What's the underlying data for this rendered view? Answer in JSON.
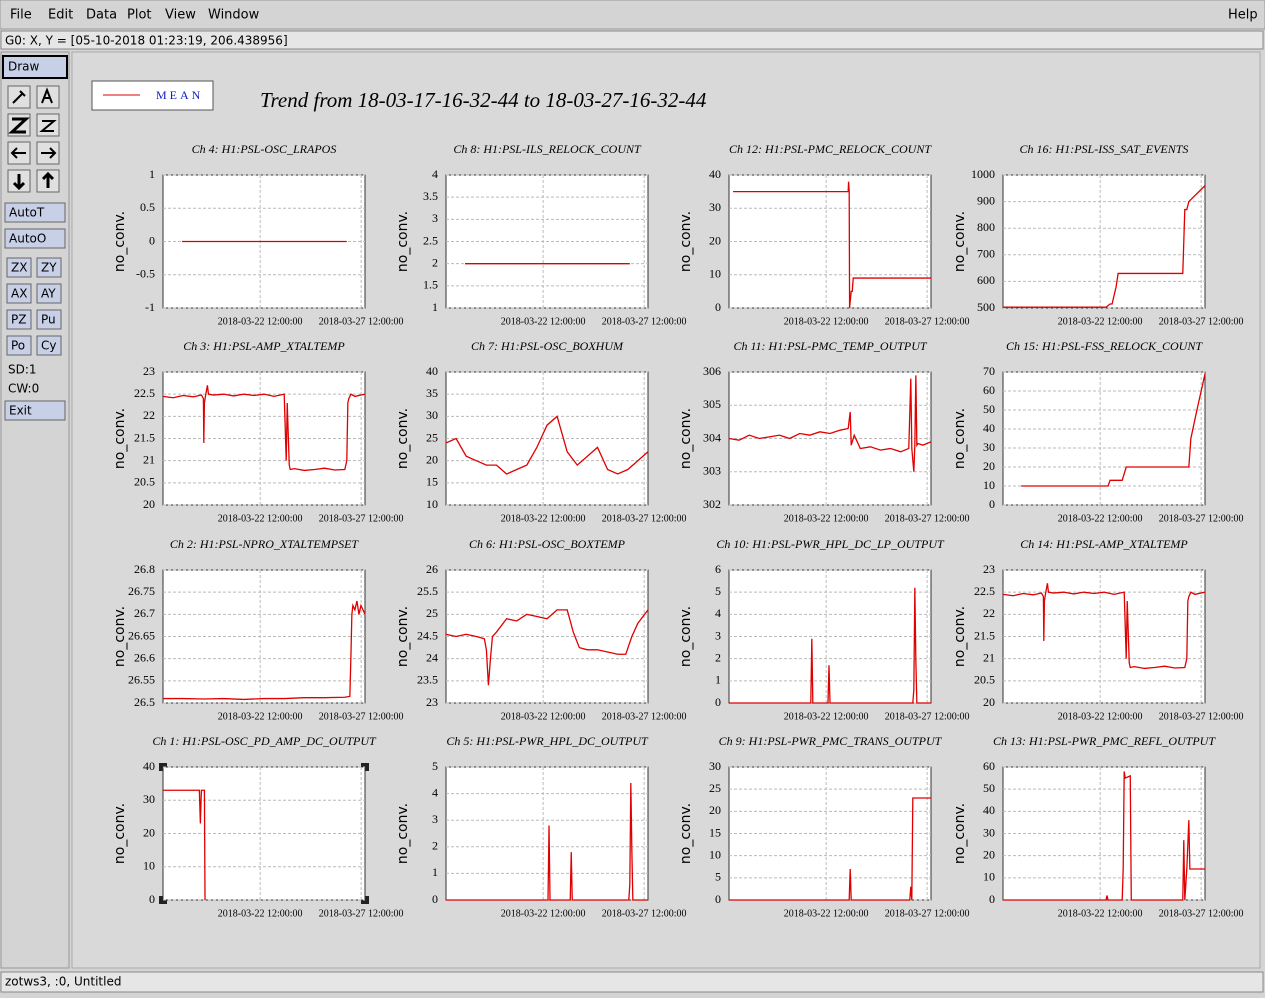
{
  "menu": [
    "File",
    "Edit",
    "Data",
    "Plot",
    "View",
    "Window"
  ],
  "help": "Help",
  "status": "G0: X, Y = [05-10-2018 01:23:19, 206.438956]",
  "toolbar": {
    "draw": "Draw",
    "buttons": [
      "AutoT",
      "AutoO"
    ],
    "pairs": [
      [
        "ZX",
        "ZY"
      ],
      [
        "AX",
        "AY"
      ],
      [
        "PZ",
        "Pu"
      ],
      [
        "Po",
        "Cy"
      ]
    ],
    "info": [
      "SD:1",
      "CW:0"
    ],
    "exit": "Exit"
  },
  "footer": "zotws3, :0, Untitled",
  "title": "Trend from 18-03-17-16-32-44 to 18-03-27-16-32-44",
  "legend": "MEAN",
  "chart_data": [
    {
      "type": "line",
      "title": "Ch 4: H1:PSL-OSC_LRAPOS",
      "ylabel": "no_conv.",
      "color": "#e00000",
      "grid": true,
      "x": [
        0.94,
        9.1
      ],
      "values": [
        0,
        0
      ],
      "xlim": [
        0,
        10
      ],
      "ylim": [
        -1,
        1
      ],
      "yticks": [
        -1,
        -0.5,
        0,
        0.5,
        1
      ],
      "xticks": [
        {
          "value": 4.81,
          "label": "2018-03-22 12:00:00"
        },
        {
          "value": 9.81,
          "label": "2018-03-27 12:00:00"
        }
      ]
    },
    {
      "type": "line",
      "title": "Ch 8: H1:PSL-ILS_RELOCK_COUNT",
      "ylabel": "no_conv.",
      "color": "#e00000",
      "grid": true,
      "x": [
        0.94,
        9.1
      ],
      "values": [
        2,
        2
      ],
      "xlim": [
        0,
        10
      ],
      "ylim": [
        1,
        4
      ],
      "yticks": [
        1,
        1.5,
        2,
        2.5,
        3,
        3.5,
        4
      ],
      "xticks": [
        {
          "value": 4.81,
          "label": "2018-03-22 12:00:00"
        },
        {
          "value": 9.81,
          "label": "2018-03-27 12:00:00"
        }
      ]
    },
    {
      "type": "line",
      "title": "Ch 12: H1:PSL-PMC_RELOCK_COUNT",
      "ylabel": "no_conv.",
      "color": "#e00000",
      "grid": true,
      "x": [
        0.2,
        5.9,
        5.92,
        5.95,
        5.97,
        6.0,
        6.05,
        6.1,
        6.15,
        6.2,
        10
      ],
      "values": [
        35,
        35,
        38,
        35,
        0,
        2,
        5,
        5,
        9,
        9,
        9
      ],
      "xlim": [
        0,
        10
      ],
      "ylim": [
        0,
        40
      ],
      "yticks": [
        0,
        10,
        20,
        30,
        40
      ],
      "xticks": [
        {
          "value": 4.81,
          "label": "2018-03-22 12:00:00"
        },
        {
          "value": 9.81,
          "label": "2018-03-27 12:00:00"
        }
      ]
    },
    {
      "type": "line",
      "title": "Ch 16: H1:PSL-ISS_SAT_EVENTS",
      "ylabel": "no_conv.",
      "color": "#e00000",
      "grid": true,
      "x": [
        0,
        5.1,
        5.3,
        5.4,
        5.6,
        5.7,
        8.9,
        9.0,
        9.1,
        9.2,
        10
      ],
      "values": [
        503,
        503,
        515,
        515,
        580,
        630,
        630,
        870,
        870,
        900,
        960
      ],
      "xlim": [
        0,
        10
      ],
      "ylim": [
        500,
        1000
      ],
      "yticks": [
        500,
        600,
        700,
        800,
        900,
        1000
      ],
      "xticks": [
        {
          "value": 4.81,
          "label": "2018-03-22 12:00:00"
        },
        {
          "value": 9.81,
          "label": "2018-03-27 12:00:00"
        }
      ]
    },
    {
      "type": "line",
      "title": "Ch 3: H1:PSL-AMP_XTALTEMP",
      "ylabel": "no_conv.",
      "color": "#e00000",
      "grid": true,
      "x": [
        0,
        0.5,
        1,
        1.5,
        1.9,
        2.0,
        2.02,
        2.05,
        2.1,
        2.2,
        2.25,
        2.5,
        3,
        3.5,
        4,
        4.5,
        5,
        5.5,
        6.0,
        6.1,
        6.15,
        6.25,
        6.3,
        6.5,
        7,
        7.5,
        8,
        8.5,
        9.0,
        9.1,
        9.15,
        9.2,
        9.3,
        9.5,
        10
      ],
      "values": [
        22.45,
        22.42,
        22.47,
        22.44,
        22.48,
        22.4,
        21.4,
        22.3,
        22.45,
        22.7,
        22.5,
        22.48,
        22.5,
        22.46,
        22.5,
        22.47,
        22.5,
        22.45,
        22.5,
        21.0,
        22.3,
        20.9,
        20.8,
        20.82,
        20.78,
        20.8,
        20.83,
        20.79,
        20.8,
        21.0,
        22.3,
        22.4,
        22.5,
        22.45,
        22.5
      ],
      "xlim": [
        0,
        10
      ],
      "ylim": [
        20,
        23
      ],
      "yticks": [
        20,
        20.5,
        21,
        21.5,
        22,
        22.5,
        23
      ],
      "xticks": [
        {
          "value": 4.81,
          "label": "2018-03-22 12:00:00"
        },
        {
          "value": 9.81,
          "label": "2018-03-27 12:00:00"
        }
      ]
    },
    {
      "type": "line",
      "title": "Ch 7: H1:PSL-OSC_BOXHUM",
      "ylabel": "no_conv.",
      "color": "#e00000",
      "grid": true,
      "x": [
        0,
        0.5,
        1,
        1.5,
        2,
        2.5,
        3,
        3.5,
        4,
        4.5,
        5,
        5.5,
        6,
        6.5,
        7,
        7.5,
        8,
        8.5,
        9,
        9.5,
        10
      ],
      "values": [
        24,
        25,
        21,
        20,
        19,
        19,
        17,
        18,
        19,
        23,
        28,
        30,
        22,
        19,
        21,
        23,
        18,
        17,
        18,
        20,
        22
      ],
      "xlim": [
        0,
        10
      ],
      "ylim": [
        10,
        40
      ],
      "yticks": [
        10,
        15,
        20,
        25,
        30,
        35,
        40
      ],
      "xticks": [
        {
          "value": 4.81,
          "label": "2018-03-22 12:00:00"
        },
        {
          "value": 9.81,
          "label": "2018-03-27 12:00:00"
        }
      ]
    },
    {
      "type": "line",
      "title": "Ch 11: H1:PSL-PMC_TEMP_OUTPUT",
      "ylabel": "no_conv.",
      "color": "#e00000",
      "grid": true,
      "x": [
        0,
        0.5,
        1,
        1.5,
        2,
        2.5,
        3,
        3.5,
        4,
        4.5,
        5,
        5.5,
        5.9,
        6.0,
        6.05,
        6.2,
        6.5,
        7,
        7.5,
        8,
        8.5,
        8.9,
        9.0,
        9.05,
        9.15,
        9.2,
        9.25,
        9.3,
        9.35,
        9.6,
        10
      ],
      "values": [
        304.0,
        303.95,
        304.1,
        304.0,
        304.05,
        304.1,
        304.0,
        304.15,
        304.1,
        304.2,
        304.15,
        304.25,
        304.3,
        304.8,
        303.8,
        304.1,
        303.7,
        303.75,
        303.65,
        303.7,
        303.6,
        303.7,
        305.8,
        303.7,
        303.0,
        303.8,
        305.9,
        303.8,
        303.85,
        303.8,
        303.9
      ],
      "xlim": [
        0,
        10
      ],
      "ylim": [
        302,
        306
      ],
      "yticks": [
        302,
        303,
        304,
        305,
        306
      ],
      "xticks": [
        {
          "value": 4.81,
          "label": "2018-03-22 12:00:00"
        },
        {
          "value": 9.81,
          "label": "2018-03-27 12:00:00"
        }
      ]
    },
    {
      "type": "line",
      "title": "Ch 15: H1:PSL-FSS_RELOCK_COUNT",
      "ylabel": "no_conv.",
      "color": "#e00000",
      "grid": true,
      "x": [
        0.9,
        5.2,
        5.3,
        5.9,
        6.1,
        6.2,
        9.2,
        9.3,
        9.6,
        10
      ],
      "values": [
        10,
        10,
        13,
        13,
        20,
        20,
        20,
        35,
        50,
        69
      ],
      "xlim": [
        0,
        10
      ],
      "ylim": [
        0,
        70
      ],
      "yticks": [
        0,
        10,
        20,
        30,
        40,
        50,
        60,
        70
      ],
      "xticks": [
        {
          "value": 4.81,
          "label": "2018-03-22 12:00:00"
        },
        {
          "value": 9.81,
          "label": "2018-03-27 12:00:00"
        }
      ]
    },
    {
      "type": "line",
      "title": "Ch 2: H1:PSL-NPRO_XTALTEMPSET",
      "ylabel": "no_conv.",
      "color": "#e00000",
      "grid": true,
      "x": [
        0,
        1,
        2,
        3,
        4,
        5,
        6,
        7,
        8,
        9,
        9.25,
        9.3,
        9.35,
        9.4,
        9.5,
        9.6,
        9.7,
        9.8,
        9.9,
        10
      ],
      "values": [
        26.51,
        26.51,
        26.509,
        26.51,
        26.508,
        26.51,
        26.51,
        26.512,
        26.512,
        26.513,
        26.515,
        26.6,
        26.7,
        26.72,
        26.71,
        26.73,
        26.7,
        26.72,
        26.71,
        26.7
      ],
      "xlim": [
        0,
        10
      ],
      "ylim": [
        26.5,
        26.8
      ],
      "yticks": [
        26.5,
        26.55,
        26.6,
        26.65,
        26.7,
        26.75,
        26.8
      ],
      "xticks": [
        {
          "value": 4.81,
          "label": "2018-03-22 12:00:00"
        },
        {
          "value": 9.81,
          "label": "2018-03-27 12:00:00"
        }
      ]
    },
    {
      "type": "line",
      "title": "Ch 6: H1:PSL-OSC_BOXTEMP",
      "ylabel": "no_conv.",
      "color": "#e00000",
      "grid": true,
      "x": [
        0,
        0.5,
        1,
        1.5,
        1.9,
        2.0,
        2.1,
        2.2,
        2.3,
        2.5,
        3,
        3.5,
        4,
        4.5,
        5,
        5.5,
        6,
        6.3,
        6.6,
        7,
        7.5,
        8,
        8.5,
        8.9,
        9.2,
        9.5,
        10
      ],
      "values": [
        24.55,
        24.5,
        24.55,
        24.5,
        24.45,
        24.2,
        23.4,
        24.0,
        24.5,
        24.6,
        24.9,
        24.85,
        25.0,
        24.95,
        24.9,
        25.1,
        25.1,
        24.6,
        24.25,
        24.2,
        24.2,
        24.15,
        24.1,
        24.1,
        24.5,
        24.8,
        25.1
      ],
      "xlim": [
        0,
        10
      ],
      "ylim": [
        23,
        26
      ],
      "yticks": [
        23,
        23.5,
        24,
        24.5,
        25,
        25.5,
        26
      ],
      "xticks": [
        {
          "value": 4.81,
          "label": "2018-03-22 12:00:00"
        },
        {
          "value": 9.81,
          "label": "2018-03-27 12:00:00"
        }
      ]
    },
    {
      "type": "line",
      "title": "Ch 10: H1:PSL-PWR_HPL_DC_LP_OUTPUT",
      "ylabel": "no_conv.",
      "color": "#e00000",
      "grid": true,
      "x": [
        0,
        4.05,
        4.1,
        4.15,
        4.9,
        4.95,
        5.0,
        9.1,
        9.15,
        9.2,
        9.25,
        9.3,
        10
      ],
      "values": [
        0,
        0,
        2.9,
        0,
        0,
        1.7,
        0,
        0,
        0.6,
        5.2,
        1.9,
        0,
        0
      ],
      "xlim": [
        0,
        10
      ],
      "ylim": [
        0,
        6
      ],
      "yticks": [
        0,
        1,
        2,
        3,
        4,
        5,
        6
      ],
      "xticks": [
        {
          "value": 4.81,
          "label": "2018-03-22 12:00:00"
        },
        {
          "value": 9.81,
          "label": "2018-03-27 12:00:00"
        }
      ]
    },
    {
      "type": "line",
      "title": "Ch 14: H1:PSL-AMP_XTALTEMP",
      "ylabel": "no_conv.",
      "color": "#e00000",
      "grid": true,
      "x": [
        0,
        0.5,
        1,
        1.5,
        1.9,
        2.0,
        2.02,
        2.05,
        2.1,
        2.2,
        2.25,
        2.5,
        3,
        3.5,
        4,
        4.5,
        5,
        5.5,
        6.0,
        6.1,
        6.15,
        6.25,
        6.3,
        6.5,
        7,
        7.5,
        8,
        8.5,
        9.0,
        9.1,
        9.15,
        9.2,
        9.3,
        9.5,
        10
      ],
      "values": [
        22.45,
        22.42,
        22.47,
        22.44,
        22.48,
        22.4,
        21.4,
        22.3,
        22.45,
        22.7,
        22.5,
        22.48,
        22.5,
        22.46,
        22.5,
        22.47,
        22.5,
        22.45,
        22.5,
        21.0,
        22.3,
        20.9,
        20.8,
        20.82,
        20.78,
        20.8,
        20.83,
        20.79,
        20.8,
        21.0,
        22.3,
        22.4,
        22.5,
        22.45,
        22.5
      ],
      "xlim": [
        0,
        10
      ],
      "ylim": [
        20,
        23
      ],
      "yticks": [
        20,
        20.5,
        21,
        21.5,
        22,
        22.5,
        23
      ],
      "xticks": [
        {
          "value": 4.81,
          "label": "2018-03-22 12:00:00"
        },
        {
          "value": 9.81,
          "label": "2018-03-27 12:00:00"
        }
      ]
    },
    {
      "type": "line",
      "title": "Ch 1: H1:PSL-OSC_PD_AMP_DC_OUTPUT",
      "ylabel": "no_conv.",
      "color": "#e00000",
      "grid": true,
      "x": [
        0,
        1.8,
        1.85,
        1.9,
        2.05,
        2.08
      ],
      "values": [
        33,
        33,
        23,
        33,
        33,
        0
      ],
      "xlim": [
        0,
        10
      ],
      "ylim": [
        0,
        40
      ],
      "yticks": [
        0,
        10,
        20,
        30,
        40
      ],
      "xticks": [
        {
          "value": 4.81,
          "label": "2018-03-22 12:00:00"
        },
        {
          "value": 9.81,
          "label": "2018-03-27 12:00:00"
        }
      ]
    },
    {
      "type": "line",
      "title": "Ch 5: H1:PSL-PWR_HPL_DC_OUTPUT",
      "ylabel": "no_conv.",
      "color": "#e00000",
      "grid": true,
      "x": [
        0,
        5.05,
        5.1,
        5.15,
        6.15,
        6.2,
        6.25,
        9.05,
        9.1,
        9.15,
        9.2,
        9.25,
        9.3,
        10
      ],
      "values": [
        0,
        0,
        2.8,
        0,
        0,
        1.8,
        0,
        0,
        0.6,
        4.4,
        1.9,
        0,
        0,
        0
      ],
      "xlim": [
        0,
        10
      ],
      "ylim": [
        0,
        5
      ],
      "yticks": [
        0,
        1,
        2,
        3,
        4,
        5
      ],
      "xticks": [
        {
          "value": 4.81,
          "label": "2018-03-22 12:00:00"
        },
        {
          "value": 9.81,
          "label": "2018-03-27 12:00:00"
        }
      ]
    },
    {
      "type": "line",
      "title": "Ch 9: H1:PSL-PWR_PMC_TRANS_OUTPUT",
      "ylabel": "no_conv.",
      "color": "#e00000",
      "grid": true,
      "x": [
        0,
        5.95,
        6.0,
        6.05,
        8.95,
        9.0,
        9.05,
        9.1,
        10
      ],
      "values": [
        0,
        0,
        7,
        0,
        0,
        3,
        0,
        23,
        23
      ],
      "xlim": [
        0,
        10
      ],
      "ylim": [
        0,
        30
      ],
      "yticks": [
        0,
        5,
        10,
        15,
        20,
        25,
        30
      ],
      "xticks": [
        {
          "value": 4.81,
          "label": "2018-03-22 12:00:00"
        },
        {
          "value": 9.81,
          "label": "2018-03-27 12:00:00"
        }
      ]
    },
    {
      "type": "line",
      "title": "Ch 13: H1:PSL-PWR_PMC_REFL_OUTPUT",
      "ylabel": "no_conv.",
      "color": "#e00000",
      "grid": true,
      "x": [
        0,
        5.1,
        5.15,
        5.2,
        5.9,
        5.95,
        6.0,
        6.05,
        6.3,
        6.35,
        8.9,
        8.95,
        9.0,
        9.1,
        9.2,
        9.25,
        9.3,
        10
      ],
      "values": [
        0,
        0,
        2,
        0,
        0,
        14,
        58,
        55,
        56,
        0,
        0,
        27,
        0,
        14,
        36,
        14,
        14,
        14
      ],
      "xlim": [
        0,
        10
      ],
      "ylim": [
        0,
        60
      ],
      "yticks": [
        0,
        10,
        20,
        30,
        40,
        50,
        60
      ],
      "xticks": [
        {
          "value": 4.81,
          "label": "2018-03-22 12:00:00"
        },
        {
          "value": 9.81,
          "label": "2018-03-27 12:00:00"
        }
      ]
    }
  ]
}
